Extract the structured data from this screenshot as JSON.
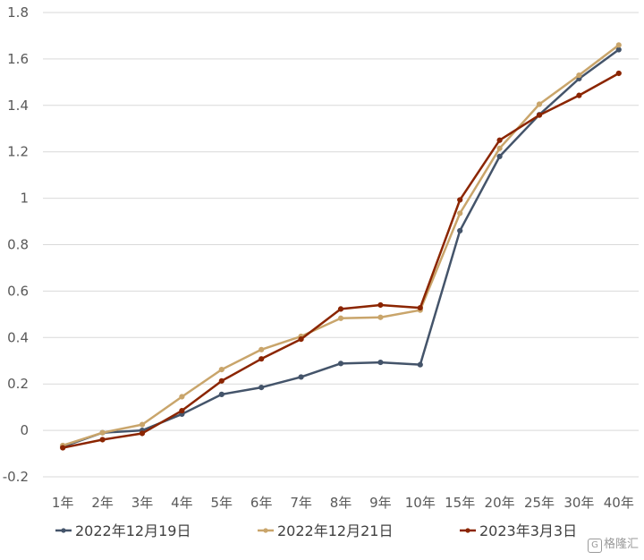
{
  "chart_data": {
    "type": "line",
    "title": "",
    "xlabel": "",
    "ylabel": "",
    "categories": [
      "1年",
      "2年",
      "3年",
      "4年",
      "5年",
      "6年",
      "7年",
      "8年",
      "9年",
      "10年",
      "15年",
      "20年",
      "25年",
      "30年",
      "40年"
    ],
    "ylim": [
      -0.2,
      1.8
    ],
    "yticks": [
      -0.2,
      0,
      0.2,
      0.4,
      0.6,
      0.8,
      1,
      1.2,
      1.4,
      1.6,
      1.8
    ],
    "ytick_labels": [
      "-0.2",
      "0",
      "0.2",
      "0.4",
      "0.6",
      "0.8",
      "1",
      "1.2",
      "1.4",
      "1.6",
      "1.8"
    ],
    "grid": true,
    "legend_position": "bottom",
    "series": [
      {
        "name": "2022年12月19日",
        "color": "#44546A",
        "values": [
          -0.07,
          -0.01,
          0.0,
          0.07,
          0.155,
          0.185,
          0.23,
          0.288,
          0.293,
          0.283,
          0.86,
          1.18,
          1.36,
          1.515,
          1.64
        ]
      },
      {
        "name": "2022年12月21日",
        "color": "#C9A56B",
        "values": [
          -0.065,
          -0.01,
          0.025,
          0.145,
          0.262,
          0.348,
          0.405,
          0.483,
          0.487,
          0.518,
          0.935,
          1.215,
          1.405,
          1.53,
          1.66
        ]
      },
      {
        "name": "2023年3月3日",
        "color": "#8B2500",
        "values": [
          -0.075,
          -0.04,
          -0.013,
          0.085,
          0.213,
          0.308,
          0.393,
          0.523,
          0.54,
          0.528,
          0.993,
          1.25,
          1.358,
          1.443,
          1.538
        ]
      }
    ]
  },
  "watermark": {
    "logo": "G",
    "text": "格隆汇"
  }
}
